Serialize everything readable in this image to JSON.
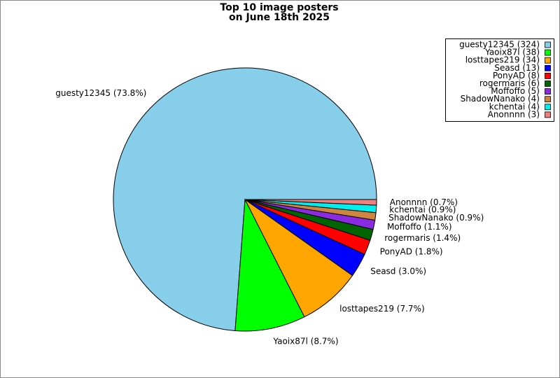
{
  "chart_data": {
    "type": "pie",
    "title": [
      "Top 10 image posters",
      "on June 18th 2025"
    ],
    "categories": [
      "guesty12345",
      "Yaoix87l",
      "losttapes219",
      "Seasd",
      "PonyAD",
      "rogermaris",
      "Moffoffo",
      "ShadowNanako",
      "kchentai",
      "Anonnnn"
    ],
    "values": [
      324,
      38,
      34,
      13,
      8,
      6,
      5,
      4,
      4,
      3
    ],
    "colors": [
      "#87ceeb",
      "#00ff00",
      "#ffa500",
      "#0000ff",
      "#ff0000",
      "#006400",
      "#8a2be2",
      "#cd853f",
      "#00eeee",
      "#f08080"
    ],
    "slice_labels": [
      "guesty12345 (73.8%)",
      "Yaoix87l (8.7%)",
      "losttapes219 (7.7%)",
      "Seasd (3.0%)",
      "PonyAD (1.8%)",
      "rogermaris (1.4%)",
      "Moffoffo (1.1%)",
      "ShadowNanako (0.9%)",
      "kchentai (0.9%)",
      "Anonnnn (0.7%)"
    ],
    "legend_labels": [
      "guesty12345 (324)",
      "Yaoix87l (38)",
      "losttapes219 (34)",
      "Seasd (13)",
      "PonyAD (8)",
      "rogermaris (6)",
      "Moffoffo (5)",
      "ShadowNanako (4)",
      "kchentai (4)",
      "Anonnnn (3)"
    ],
    "legend": "upper right"
  }
}
